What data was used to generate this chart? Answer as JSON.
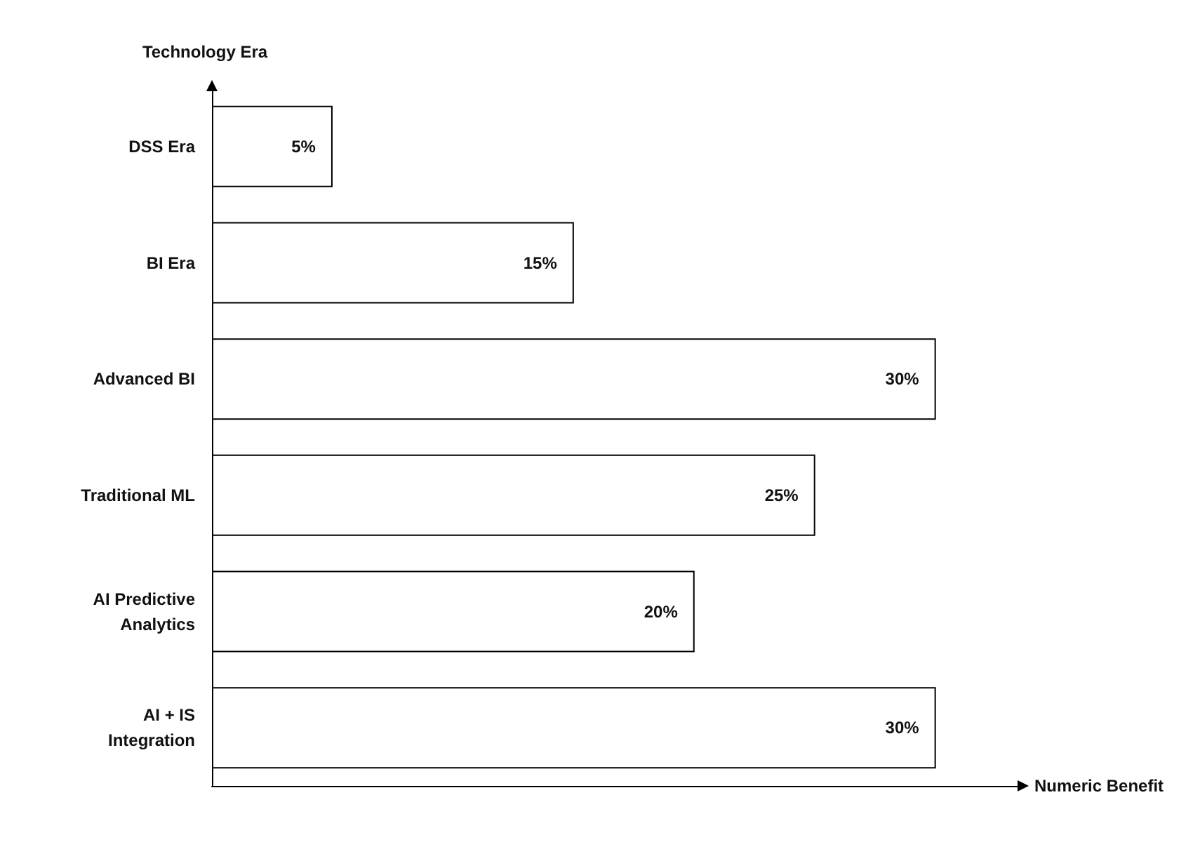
{
  "chart_data": {
    "type": "bar",
    "orientation": "horizontal",
    "xlabel": "Numeric Benefit",
    "ylabel": "Technology Era",
    "categories": [
      "DSS Era",
      "BI Era",
      "Advanced BI",
      "Traditional ML",
      "AI Predictive\nAnalytics",
      "AI + IS\nIntegration"
    ],
    "values": [
      5,
      15,
      30,
      25,
      20,
      30
    ],
    "value_labels": [
      "5%",
      "15%",
      "30%",
      "25%",
      "20%",
      "30%"
    ],
    "color": "#ffffff",
    "xlim": [
      0,
      33.5
    ],
    "tick_labels": "y",
    "grid": false
  }
}
